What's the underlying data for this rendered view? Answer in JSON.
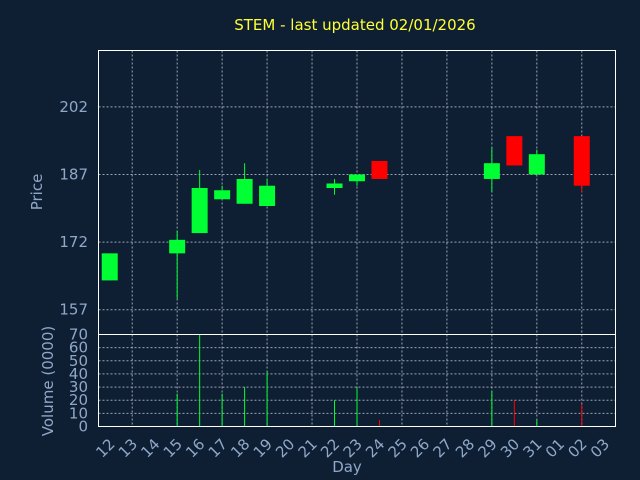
{
  "chart_data": {
    "type": "candlestick",
    "title": "STEM - last updated 02/01/2026",
    "xlabel": "Day",
    "ylabel": "Price",
    "volume_label": "Volume (0000)",
    "categories": [
      "12",
      "13",
      "14",
      "15",
      "16",
      "17",
      "18",
      "19",
      "20",
      "21",
      "22",
      "23",
      "24",
      "25",
      "26",
      "27",
      "28",
      "29",
      "30",
      "31",
      "01",
      "02",
      "03"
    ],
    "price_ticks": [
      157,
      172,
      187,
      202
    ],
    "price_ylim": [
      151.5,
      214.5
    ],
    "volume_ticks": [
      0,
      10,
      20,
      30,
      40,
      50,
      60,
      70
    ],
    "volume_ylim": [
      0,
      70
    ],
    "grid": true,
    "candles": [
      {
        "day": "12",
        "open": 163.5,
        "high": 169.5,
        "low": 163.5,
        "close": 169.5,
        "volume": 0
      },
      {
        "day": "15",
        "open": 169.5,
        "high": 174.5,
        "low": 159.5,
        "close": 172.5,
        "volume": 25
      },
      {
        "day": "16",
        "open": 174.0,
        "high": 188.0,
        "low": 174.0,
        "close": 184.0,
        "volume": 70
      },
      {
        "day": "17",
        "open": 181.5,
        "high": 184.5,
        "low": 181.5,
        "close": 183.5,
        "volume": 25
      },
      {
        "day": "18",
        "open": 180.5,
        "high": 189.5,
        "low": 180.5,
        "close": 186.0,
        "volume": 30
      },
      {
        "day": "19",
        "open": 180.0,
        "high": 186.0,
        "low": 180.0,
        "close": 184.5,
        "volume": 42
      },
      {
        "day": "22",
        "open": 184.0,
        "high": 186.0,
        "low": 182.5,
        "close": 185.0,
        "volume": 20
      },
      {
        "day": "23",
        "open": 185.5,
        "high": 187.0,
        "low": 184.5,
        "close": 187.0,
        "volume": 30
      },
      {
        "day": "24",
        "open": 190.0,
        "high": 190.0,
        "low": 186.0,
        "close": 186.0,
        "volume": 5
      },
      {
        "day": "29",
        "open": 186.0,
        "high": 193.0,
        "low": 183.0,
        "close": 189.5,
        "volume": 27
      },
      {
        "day": "30",
        "open": 195.5,
        "high": 195.5,
        "low": 189.0,
        "close": 189.0,
        "volume": 20
      },
      {
        "day": "31",
        "open": 187.0,
        "high": 192.5,
        "low": 187.0,
        "close": 191.5,
        "volume": 5
      },
      {
        "day": "02",
        "open": 195.5,
        "high": 195.5,
        "low": 183.0,
        "close": 184.5,
        "volume": 17
      }
    ]
  },
  "colors": {
    "background": "#0f1f33",
    "title": "#ffff33",
    "axis_text": "#8fa8c8",
    "up": "#00ff33",
    "down": "#ff0000",
    "frame": "#ffffff",
    "grid": "#c8d0dc"
  }
}
